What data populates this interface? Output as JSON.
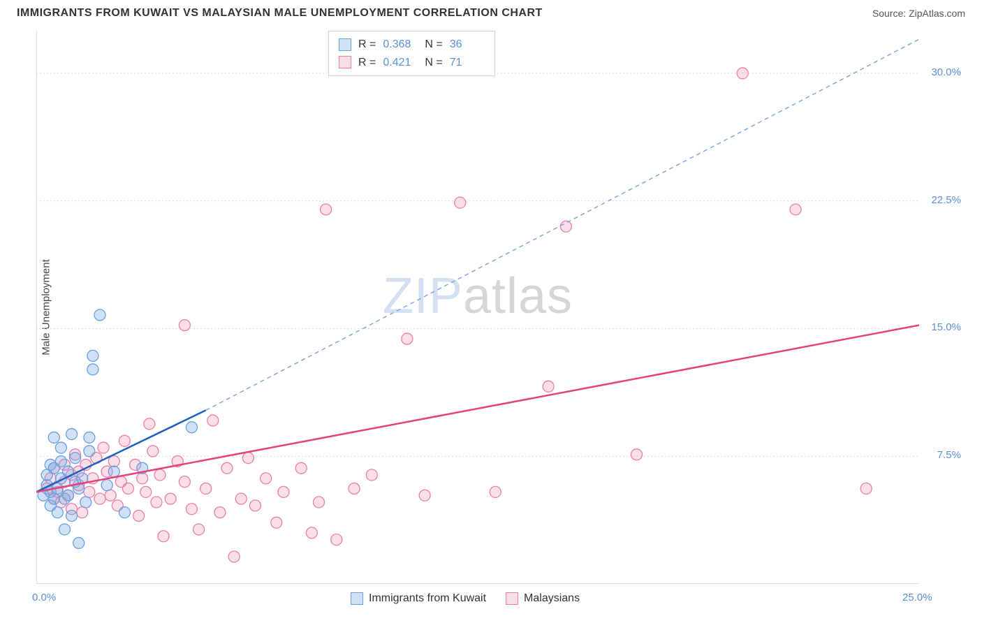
{
  "header": {
    "title": "IMMIGRANTS FROM KUWAIT VS MALAYSIAN MALE UNEMPLOYMENT CORRELATION CHART",
    "source": "Source: ZipAtlas.com"
  },
  "chart": {
    "type": "scatter",
    "y_label": "Male Unemployment",
    "background_color": "#ffffff",
    "grid_color": "#d9d9d9",
    "axis_color": "#d5d5d5",
    "watermark_text_a": "ZIP",
    "watermark_text_b": "atlas",
    "xlim": [
      0,
      25
    ],
    "ylim": [
      0,
      32.5
    ],
    "y_ticks": [
      7.5,
      15.0,
      22.5,
      30.0
    ],
    "y_tick_labels": [
      "7.5%",
      "15.0%",
      "22.5%",
      "30.0%"
    ],
    "x_ticks": [
      0,
      5,
      10,
      15,
      20,
      25
    ],
    "x_tick_labels_shown": {
      "0": "0.0%",
      "25": "25.0%"
    },
    "marker_radius": 8,
    "series": {
      "kuwait": {
        "label": "Immigrants from Kuwait",
        "fill_color": "rgba(120,170,230,0.35)",
        "stroke_color": "#6aa0e0",
        "trend_solid_color": "#1f5fbf",
        "trend_dash_color": "#7fa8e0",
        "R": "0.368",
        "N": "36",
        "trend": {
          "x1": 0,
          "y1": 5.4,
          "x2_solid": 4.8,
          "y2_solid": 10.2,
          "x2_dash": 25,
          "y2_dash": 32.0
        },
        "points": [
          [
            0.2,
            5.2
          ],
          [
            0.3,
            5.8
          ],
          [
            0.3,
            6.4
          ],
          [
            0.4,
            4.6
          ],
          [
            0.4,
            5.4
          ],
          [
            0.4,
            7.0
          ],
          [
            0.5,
            8.6
          ],
          [
            0.5,
            5.0
          ],
          [
            0.5,
            6.8
          ],
          [
            0.6,
            5.6
          ],
          [
            0.6,
            4.2
          ],
          [
            0.7,
            6.2
          ],
          [
            0.7,
            7.2
          ],
          [
            0.7,
            8.0
          ],
          [
            0.8,
            5.0
          ],
          [
            0.8,
            3.2
          ],
          [
            0.9,
            6.6
          ],
          [
            0.9,
            5.2
          ],
          [
            1.0,
            8.8
          ],
          [
            1.0,
            4.0
          ],
          [
            1.1,
            6.0
          ],
          [
            1.1,
            7.4
          ],
          [
            1.2,
            2.4
          ],
          [
            1.2,
            5.6
          ],
          [
            1.3,
            6.2
          ],
          [
            1.4,
            4.8
          ],
          [
            1.5,
            7.8
          ],
          [
            1.5,
            8.6
          ],
          [
            1.6,
            12.6
          ],
          [
            1.6,
            13.4
          ],
          [
            1.8,
            15.8
          ],
          [
            2.0,
            5.8
          ],
          [
            2.2,
            6.6
          ],
          [
            2.5,
            4.2
          ],
          [
            3.0,
            6.8
          ],
          [
            4.4,
            9.2
          ]
        ]
      },
      "malaysians": {
        "label": "Malaysians",
        "fill_color": "rgba(240,150,180,0.30)",
        "stroke_color": "#e97fa8",
        "trend_color": "#e4427a",
        "R": "0.421",
        "N": "71",
        "trend": {
          "x1": 0,
          "y1": 5.4,
          "x2": 25,
          "y2": 15.2
        },
        "points": [
          [
            0.3,
            5.6
          ],
          [
            0.4,
            6.2
          ],
          [
            0.5,
            5.0
          ],
          [
            0.5,
            6.8
          ],
          [
            0.6,
            5.4
          ],
          [
            0.7,
            4.8
          ],
          [
            0.8,
            6.0
          ],
          [
            0.8,
            7.0
          ],
          [
            0.9,
            5.2
          ],
          [
            1.0,
            6.4
          ],
          [
            1.0,
            4.4
          ],
          [
            1.1,
            7.6
          ],
          [
            1.2,
            5.8
          ],
          [
            1.2,
            6.6
          ],
          [
            1.3,
            4.2
          ],
          [
            1.4,
            7.0
          ],
          [
            1.5,
            5.4
          ],
          [
            1.6,
            6.2
          ],
          [
            1.7,
            7.4
          ],
          [
            1.8,
            5.0
          ],
          [
            1.9,
            8.0
          ],
          [
            2.0,
            6.6
          ],
          [
            2.1,
            5.2
          ],
          [
            2.2,
            7.2
          ],
          [
            2.3,
            4.6
          ],
          [
            2.4,
            6.0
          ],
          [
            2.5,
            8.4
          ],
          [
            2.6,
            5.6
          ],
          [
            2.8,
            7.0
          ],
          [
            2.9,
            4.0
          ],
          [
            3.0,
            6.2
          ],
          [
            3.1,
            5.4
          ],
          [
            3.2,
            9.4
          ],
          [
            3.3,
            7.8
          ],
          [
            3.4,
            4.8
          ],
          [
            3.5,
            6.4
          ],
          [
            3.6,
            2.8
          ],
          [
            3.8,
            5.0
          ],
          [
            4.0,
            7.2
          ],
          [
            4.2,
            6.0
          ],
          [
            4.2,
            15.2
          ],
          [
            4.4,
            4.4
          ],
          [
            4.6,
            3.2
          ],
          [
            4.8,
            5.6
          ],
          [
            5.0,
            9.6
          ],
          [
            5.2,
            4.2
          ],
          [
            5.4,
            6.8
          ],
          [
            5.6,
            1.6
          ],
          [
            5.8,
            5.0
          ],
          [
            6.0,
            7.4
          ],
          [
            6.2,
            4.6
          ],
          [
            6.5,
            6.2
          ],
          [
            6.8,
            3.6
          ],
          [
            7.0,
            5.4
          ],
          [
            7.5,
            6.8
          ],
          [
            7.8,
            3.0
          ],
          [
            8.0,
            4.8
          ],
          [
            8.2,
            22.0
          ],
          [
            8.5,
            2.6
          ],
          [
            9.0,
            5.6
          ],
          [
            9.5,
            6.4
          ],
          [
            10.5,
            14.4
          ],
          [
            11.0,
            5.2
          ],
          [
            12.0,
            22.4
          ],
          [
            13.0,
            5.4
          ],
          [
            14.5,
            11.6
          ],
          [
            15.0,
            21.0
          ],
          [
            17.0,
            7.6
          ],
          [
            20.0,
            30.0
          ],
          [
            21.5,
            22.0
          ],
          [
            23.5,
            5.6
          ]
        ]
      }
    },
    "stats_box": {
      "R_label": "R =",
      "N_label": "N ="
    },
    "legend_bottom": [
      {
        "swatch": "blue",
        "label_key": "chart.series.kuwait.label"
      },
      {
        "swatch": "pink",
        "label_key": "chart.series.malaysians.label"
      }
    ]
  }
}
